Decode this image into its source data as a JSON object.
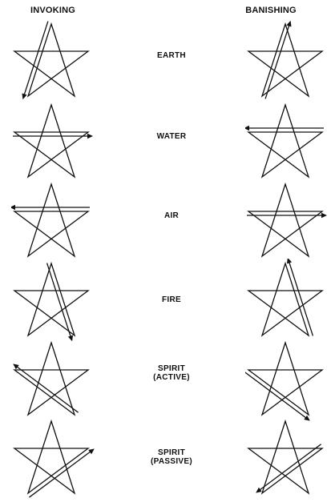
{
  "headers": {
    "invoking": "INVOKING",
    "banishing": "BANISHING"
  },
  "rows": [
    {
      "lines": [
        "EARTH"
      ],
      "invoke": "earth",
      "banish": "earth"
    },
    {
      "lines": [
        "WATER"
      ],
      "invoke": "water",
      "banish": "water"
    },
    {
      "lines": [
        "AIR"
      ],
      "invoke": "air",
      "banish": "air"
    },
    {
      "lines": [
        "FIRE"
      ],
      "invoke": "fire",
      "banish": "fire"
    },
    {
      "lines": [
        "SPIRIT",
        "(ACTIVE)"
      ],
      "invoke": "spirit-active",
      "banish": "spirit-active"
    },
    {
      "lines": [
        "SPIRIT",
        "(PASSIVE)"
      ],
      "invoke": "spirit-passive",
      "banish": "spirit-passive"
    }
  ],
  "colors": {
    "ink": "#111111"
  }
}
